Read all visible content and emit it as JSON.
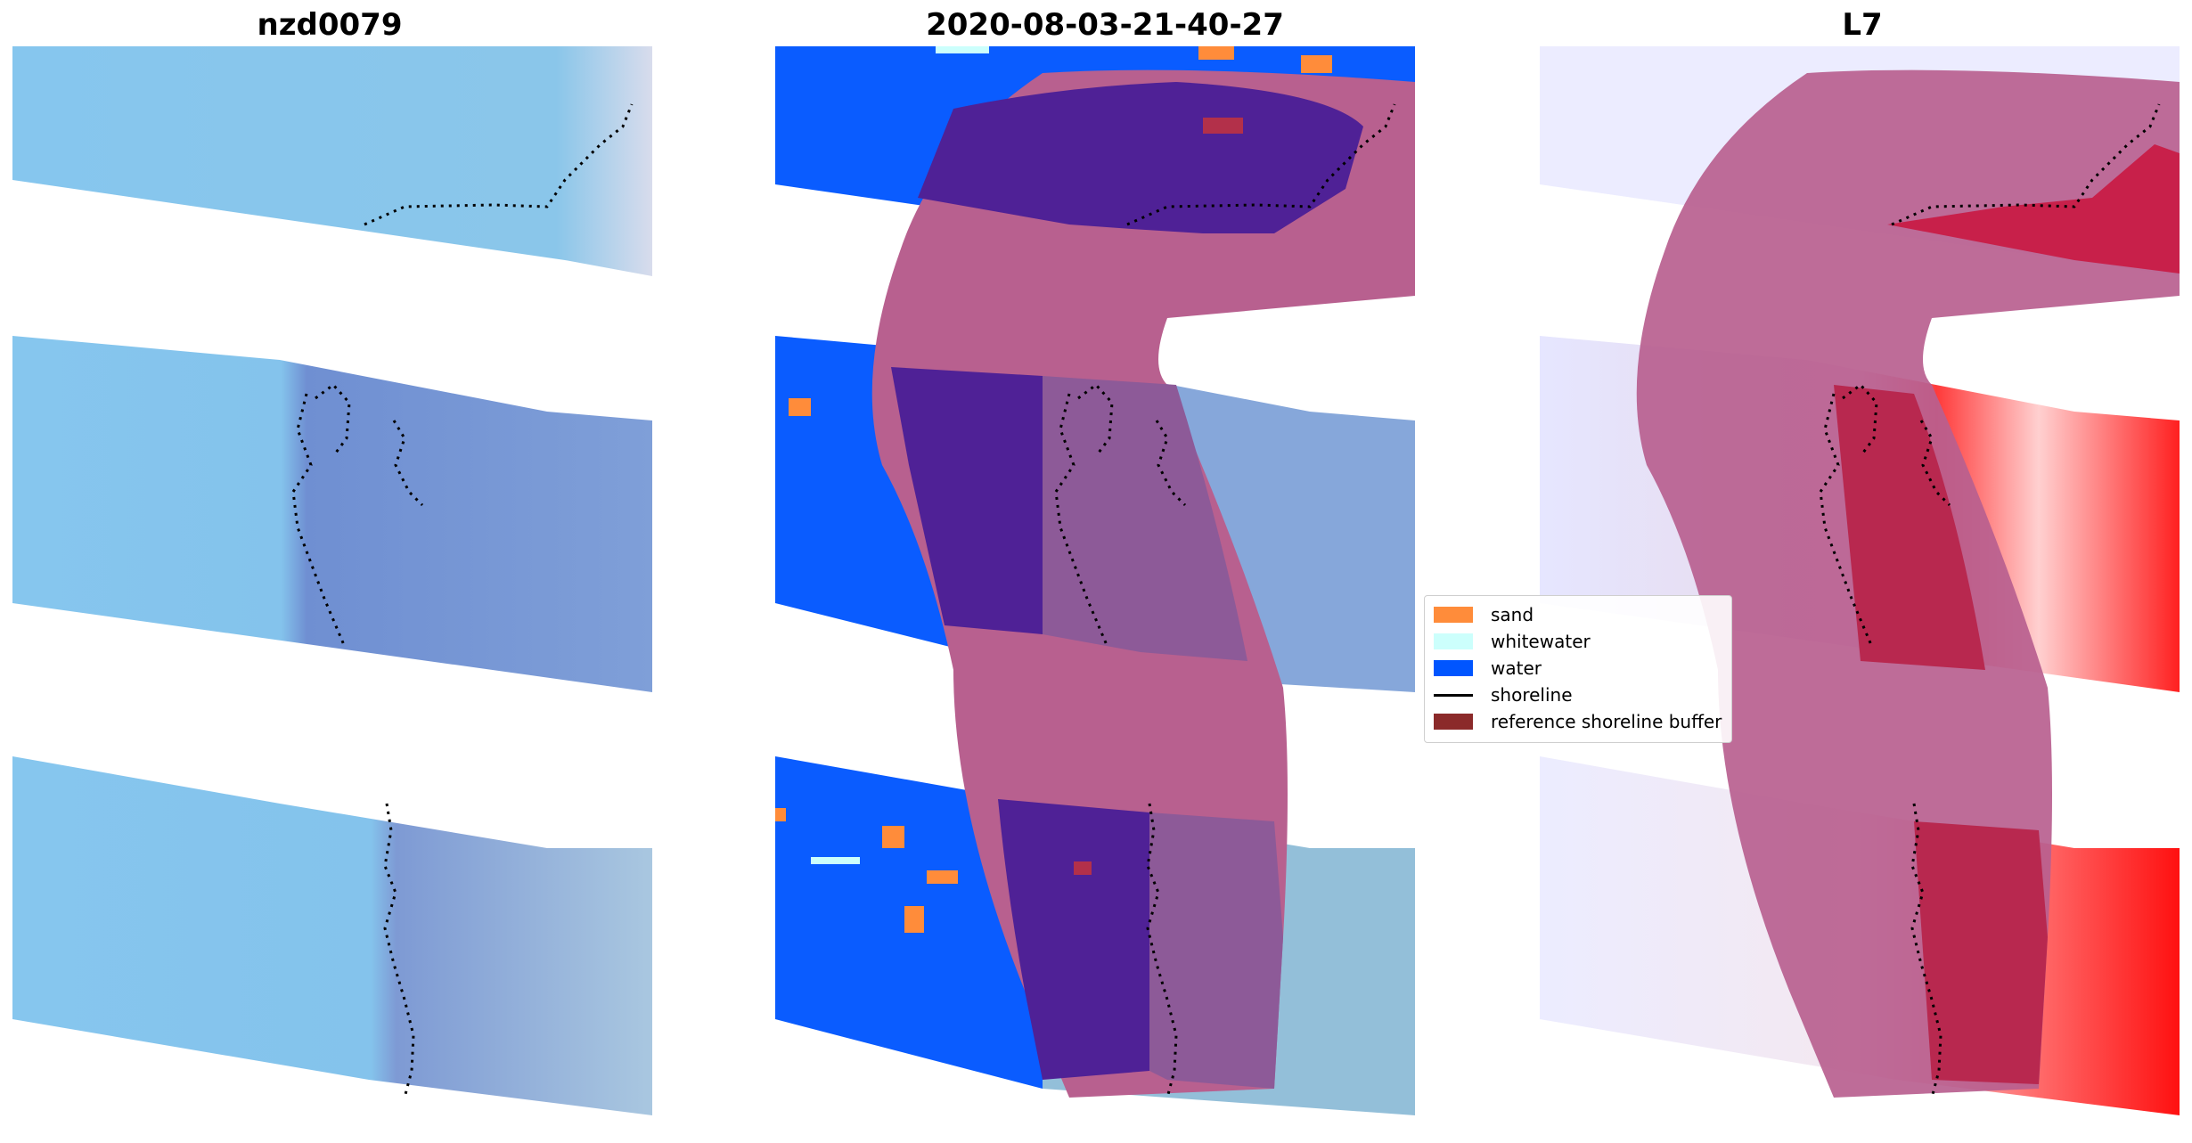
{
  "panels": [
    {
      "title": "nzd0079"
    },
    {
      "title": "2020-08-03-21-40-27"
    },
    {
      "title": "L7"
    }
  ],
  "legend": {
    "items": [
      {
        "label": "sand",
        "color": "#ff8c3a"
      },
      {
        "label": "whitewater",
        "color": "#ccfffc"
      },
      {
        "label": "water",
        "color": "#0055ff"
      },
      {
        "label": "shoreline",
        "color": "#000000"
      },
      {
        "label": "reference shoreline buffer",
        "color": "#8b2a2a"
      }
    ]
  },
  "colors": {
    "rgb_sea": "#84c3ec",
    "rgb_land": "#7f9bd6",
    "water_class": "#0a5cff",
    "buffer": "#b8608f",
    "buffer_overlap": "#4f2196",
    "index_low": "#e8e8ff",
    "index_high": "#ff1a1a"
  }
}
